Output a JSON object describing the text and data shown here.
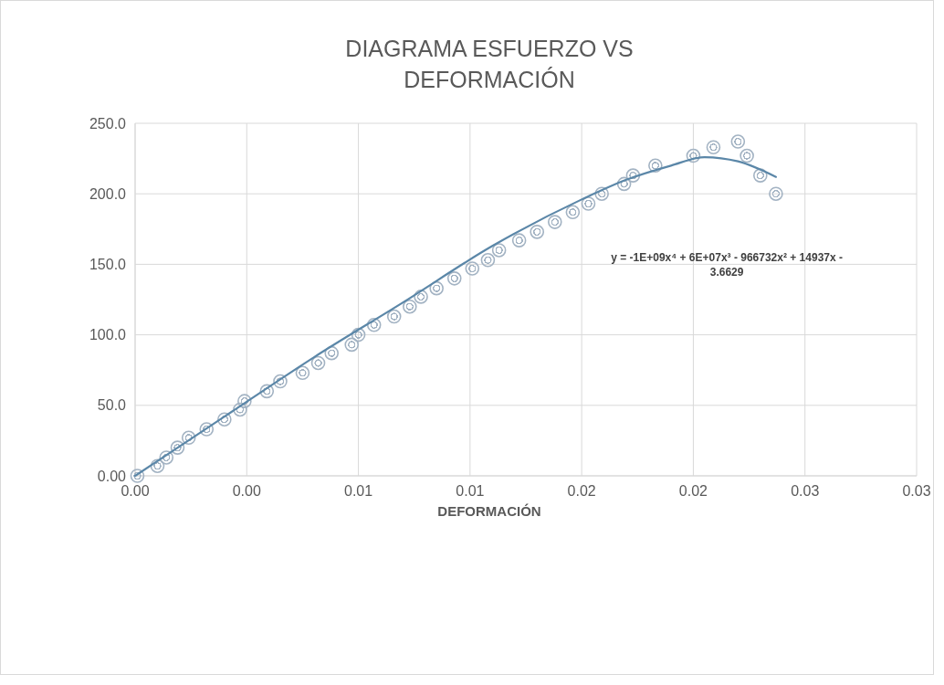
{
  "chart_data": {
    "type": "scatter",
    "title": "DIAGRAMA ESFUERZO VS DEFORMACIÓN",
    "xlabel": "DEFORMACIÓN",
    "xlim": [
      0,
      0.035
    ],
    "xticks": [
      {
        "value": 0,
        "label": "0.00"
      },
      {
        "value": 0.005,
        "label": "0.00"
      },
      {
        "value": 0.01,
        "label": "0.01"
      },
      {
        "value": 0.015,
        "label": "0.01"
      },
      {
        "value": 0.02,
        "label": "0.02"
      },
      {
        "value": 0.025,
        "label": "0.02"
      },
      {
        "value": 0.03,
        "label": "0.03"
      },
      {
        "value": 0.035,
        "label": "0.03"
      }
    ],
    "ylim": [
      0,
      250
    ],
    "yticks": [
      {
        "value": 0,
        "label": "0.00"
      },
      {
        "value": 50,
        "label": "50.0"
      },
      {
        "value": 100,
        "label": "100.0"
      },
      {
        "value": 150,
        "label": "150.0"
      },
      {
        "value": 200,
        "label": "200.0"
      },
      {
        "value": 250,
        "label": "250.0"
      }
    ],
    "grid": true,
    "marker": "circle",
    "series": [
      {
        "color": "#a3b3c3",
        "x": [
          0.0001,
          0.001,
          0.0014,
          0.0019,
          0.0024,
          0.0032,
          0.004,
          0.0047,
          0.0049,
          0.0059,
          0.0065,
          0.0075,
          0.0082,
          0.0088,
          0.0097,
          0.01,
          0.0107,
          0.0116,
          0.0123,
          0.0128,
          0.0135,
          0.0143,
          0.0151,
          0.0158,
          0.0163,
          0.0172,
          0.018,
          0.0188,
          0.0196,
          0.0203,
          0.0209,
          0.0219,
          0.0223,
          0.0233,
          0.025,
          0.0259,
          0.027,
          0.0274,
          0.028,
          0.0287
        ],
        "values": [
          0,
          7,
          13,
          20,
          27,
          33,
          40,
          47,
          53,
          60,
          67,
          73,
          80,
          87,
          93,
          100,
          107,
          113,
          120,
          127,
          133,
          140,
          147,
          153,
          160,
          167,
          173,
          180,
          187,
          193,
          200,
          207,
          213,
          220,
          227,
          233,
          237,
          227,
          213,
          200
        ]
      },
      {
        "type": "line",
        "color": "#5b87a8",
        "marker": "none",
        "x": [
          0,
          0.004,
          0.008,
          0.012,
          0.016,
          0.02,
          0.022,
          0.024,
          0.0255,
          0.027,
          0.0287
        ],
        "values": [
          0,
          42,
          84,
          123,
          163,
          196,
          210,
          220,
          226,
          223,
          212
        ]
      }
    ],
    "annotations": [
      "y = -1E+09x⁴ + 6E+07x³ - 966732x² + 14937x - 3.6629"
    ]
  }
}
